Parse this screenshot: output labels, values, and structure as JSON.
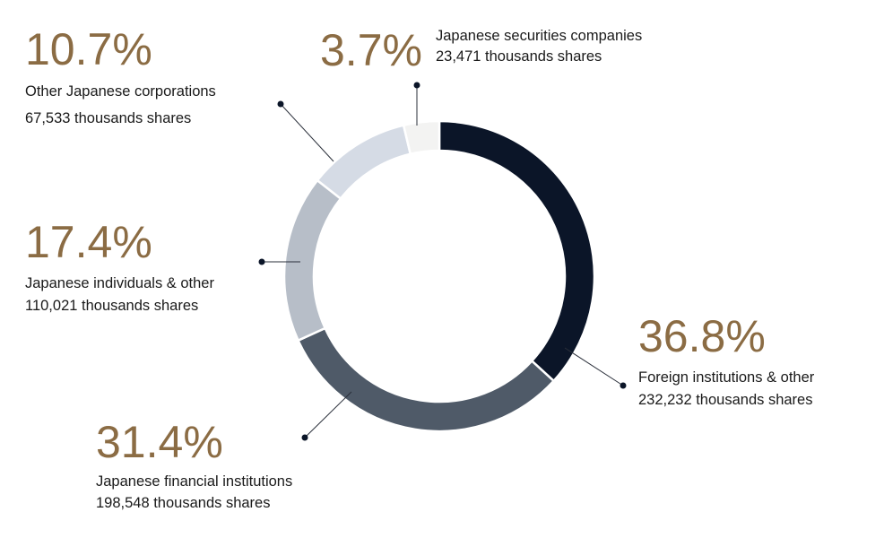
{
  "chart_data": {
    "type": "donut",
    "categories": [
      "Foreign institutions & other",
      "Japanese financial institutions",
      "Japanese individuals & other",
      "Other Japanese corporations",
      "Japanese securities companies"
    ],
    "values": [
      36.8,
      31.4,
      17.4,
      10.7,
      3.7
    ],
    "value_labels": [
      "36.8%",
      "31.4%",
      "17.4%",
      "10.7%",
      "3.7%"
    ],
    "share_labels": [
      "232,232 thousands shares",
      "198,548 thousands shares",
      "110,021 thousands shares",
      "67,533 thousands shares",
      "23,471 thousands shares"
    ],
    "colors": [
      "#0b1528",
      "#4f5a68",
      "#b7bec8",
      "#d5dbe5",
      "#f3f3f2"
    ]
  }
}
